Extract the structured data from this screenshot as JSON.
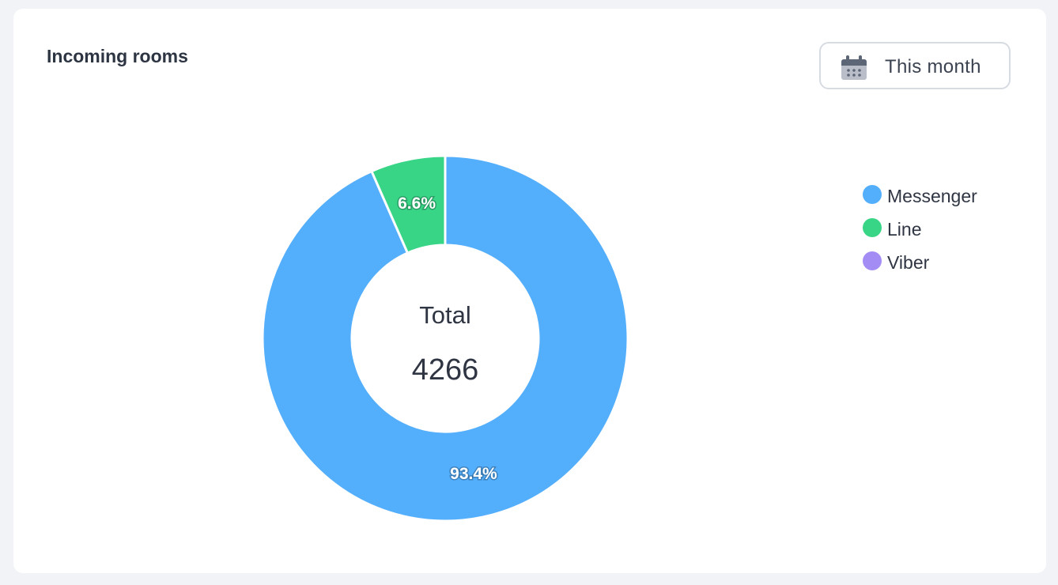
{
  "card": {
    "title": "Incoming rooms"
  },
  "range_button": {
    "label": "This month",
    "icon": "calendar-icon"
  },
  "colors": {
    "Messenger": "#53aefc",
    "Line": "#38d587",
    "Viber": "#a48cf5"
  },
  "chart_data": {
    "type": "pie",
    "variant": "donut",
    "center_title": "Total",
    "center_value": "4266",
    "labels": [
      "Messenger",
      "Line",
      "Viber"
    ],
    "values": [
      93.4,
      6.6,
      0
    ],
    "value_labels": [
      "93.4%",
      "6.6%",
      ""
    ],
    "legend_position": "right"
  }
}
